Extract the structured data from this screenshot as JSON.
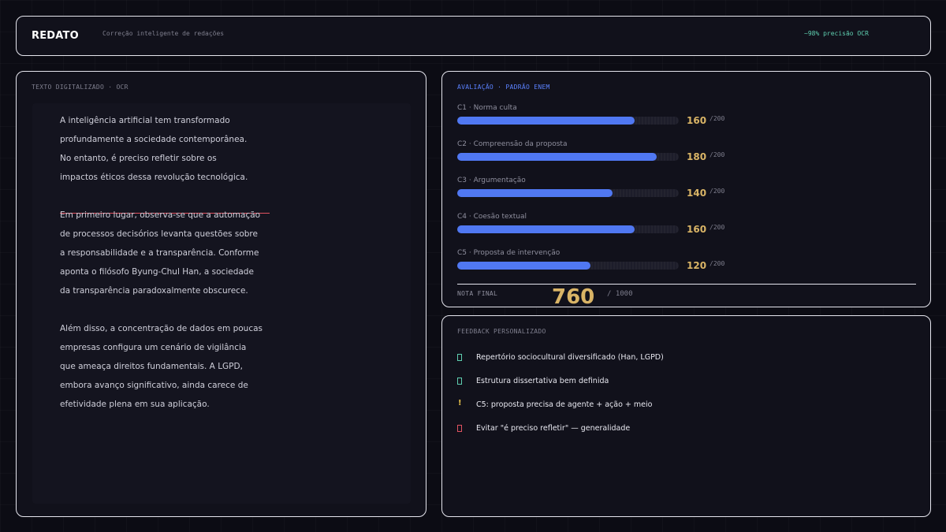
{
  "header": {
    "brand": "REDATO",
    "tagline": "Correção inteligente de redações",
    "ocr_accuracy": "~98% precisão OCR"
  },
  "ocr_panel": {
    "label": "TEXTO DIGITALIZADO · OCR",
    "lines": [
      "A inteligência artificial tem transformado",
      "profundamente a sociedade contemporânea.",
      "No entanto, é preciso refletir sobre os",
      "impactos éticos dessa revolução tecnológica.",
      "Em primeiro lugar, observa-se que a automação",
      "de processos decisórios levanta questões sobre",
      "a responsabilidade e a transparência. Conforme",
      "aponta o filósofo Byung-Chul Han, a sociedade",
      "da transparência paradoxalmente obscurece.",
      "Além disso, a concentração de dados em poucas",
      "empresas configura um cenário de vigilância",
      "que ameaça direitos fundamentais. A LGPD,",
      "embora avanço significativo, ainda carece de",
      "efetividade plena em sua aplicação."
    ]
  },
  "evaluation": {
    "title": "AVALIAÇÃO · PADRÃO ENEM",
    "criteria": [
      {
        "label": "C1 · Norma culta",
        "score": "160",
        "max": "/200",
        "fraction": 0.8
      },
      {
        "label": "C2 · Compreensão da proposta",
        "score": "180",
        "max": "/200",
        "fraction": 0.9
      },
      {
        "label": "C3 · Argumentação",
        "score": "140",
        "max": "/200",
        "fraction": 0.7
      },
      {
        "label": "C4 · Coesão textual",
        "score": "160",
        "max": "/200",
        "fraction": 0.8
      },
      {
        "label": "C5 · Proposta de intervenção",
        "score": "120",
        "max": "/200",
        "fraction": 0.6
      }
    ],
    "final_label": "NOTA FINAL",
    "final_score": "760",
    "final_max": "/ 1000",
    "colors": {
      "bar": "#5078f2",
      "score": "#d9b466"
    }
  },
  "feedback": {
    "title": "FEEDBACK PERSONALIZADO",
    "items": [
      {
        "icon": "check-box-icon",
        "color": "#5fcfb0",
        "text": "Repertório sociocultural diversificado (Han, LGPD)"
      },
      {
        "icon": "check-box-icon",
        "color": "#5fcfb0",
        "text": "Estrutura dissertativa bem definida"
      },
      {
        "icon": "warning-icon",
        "color": "#e8c24a",
        "text": "C5: proposta precisa de agente + ação + meio"
      },
      {
        "icon": "error-box-icon",
        "color": "#e05260",
        "text": "Evitar \"é preciso refletir\" — generalidade"
      }
    ]
  }
}
